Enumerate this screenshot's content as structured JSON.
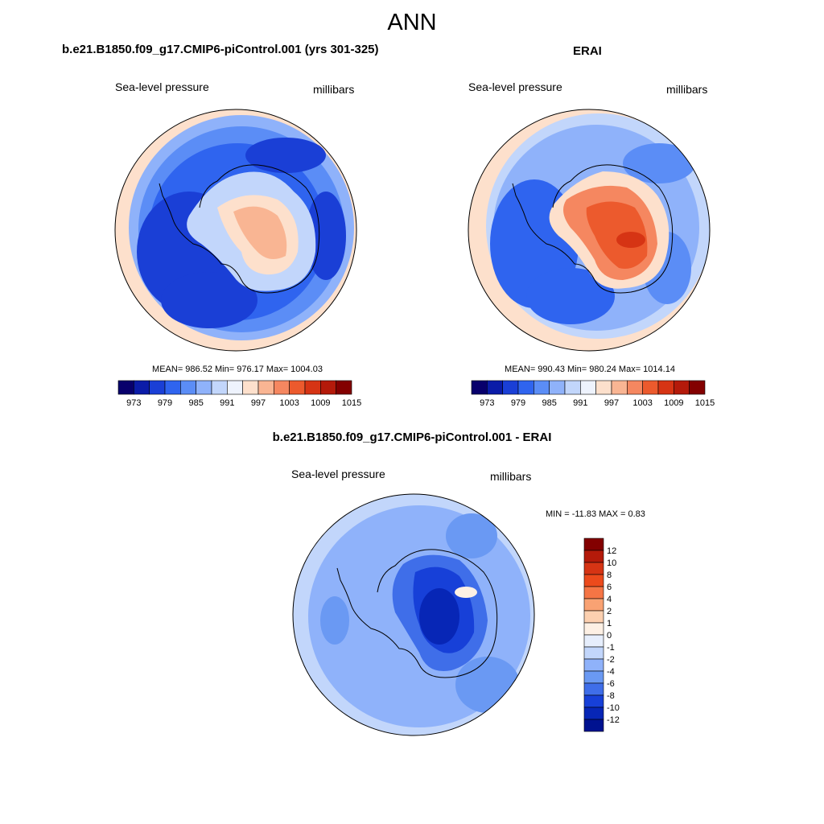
{
  "figure": {
    "title": "ANN"
  },
  "chart_data": [
    {
      "type": "heatmap",
      "projection": "south-polar-stereographic",
      "title": "b.e21.B1850.f09_g17.CMIP6-piControl.001 (yrs 301-325)",
      "left_label": "Sea-level pressure",
      "right_label": "millibars",
      "stats": {
        "mean": 986.52,
        "min": 976.17,
        "max": 1004.03
      },
      "stats_text": "MEAN= 986.52  Min= 976.17  Max= 1004.03",
      "colorbar": {
        "orientation": "horizontal",
        "levels": [
          973,
          976,
          979,
          982,
          985,
          988,
          991,
          994,
          997,
          1000,
          1003,
          1006,
          1009,
          1012,
          1015
        ],
        "tick_labels": [
          "973",
          "979",
          "985",
          "991",
          "997",
          "1003",
          "1009",
          "1015"
        ],
        "colors": [
          "#08006c",
          "#0b1ca8",
          "#1a3fd6",
          "#2f64ef",
          "#5b8df6",
          "#8fb2fa",
          "#c2d6fb",
          "#eef3fd",
          "#fde0cc",
          "#f9b593",
          "#f58760",
          "#ec5a2d",
          "#d63414",
          "#b41a0a",
          "#830000"
        ]
      }
    },
    {
      "type": "heatmap",
      "projection": "south-polar-stereographic",
      "title": "ERAI",
      "left_label": "Sea-level pressure",
      "right_label": "millibars",
      "stats": {
        "mean": 990.43,
        "min": 980.24,
        "max": 1014.14
      },
      "stats_text": "MEAN= 990.43  Min= 980.24  Max= 1014.14",
      "colorbar": {
        "orientation": "horizontal",
        "levels": [
          973,
          976,
          979,
          982,
          985,
          988,
          991,
          994,
          997,
          1000,
          1003,
          1006,
          1009,
          1012,
          1015
        ],
        "tick_labels": [
          "973",
          "979",
          "985",
          "991",
          "997",
          "1003",
          "1009",
          "1015"
        ],
        "colors": [
          "#08006c",
          "#0b1ca8",
          "#1a3fd6",
          "#2f64ef",
          "#5b8df6",
          "#8fb2fa",
          "#c2d6fb",
          "#eef3fd",
          "#fde0cc",
          "#f9b593",
          "#f58760",
          "#ec5a2d",
          "#d63414",
          "#b41a0a",
          "#830000"
        ]
      }
    },
    {
      "type": "heatmap",
      "projection": "south-polar-stereographic",
      "title": "b.e21.B1850.f09_g17.CMIP6-piControl.001 - ERAI",
      "left_label": "Sea-level pressure",
      "right_label": "millibars",
      "stats": {
        "min": -11.83,
        "max": 0.83
      },
      "stats_text": "MIN = -11.83 MAX =   0.83",
      "colorbar": {
        "orientation": "vertical",
        "levels": [
          -12,
          -10,
          -8,
          -6,
          -4,
          -2,
          -1,
          0,
          1,
          2,
          4,
          6,
          8,
          10,
          12
        ],
        "tick_labels": [
          "12",
          "10",
          "8",
          "6",
          "4",
          "2",
          "1",
          "0",
          "-1",
          "-2",
          "-4",
          "-6",
          "-8",
          "-10",
          "-12"
        ],
        "colors": [
          "#830000",
          "#b41a0a",
          "#d63414",
          "#ec4a1c",
          "#f57545",
          "#f9a273",
          "#fcd0b0",
          "#fdf0e4",
          "#e6eefc",
          "#c2d6fb",
          "#8fb2fa",
          "#6a99f3",
          "#3f6ee9",
          "#1740d8",
          "#0726b6",
          "#001290"
        ]
      }
    }
  ]
}
